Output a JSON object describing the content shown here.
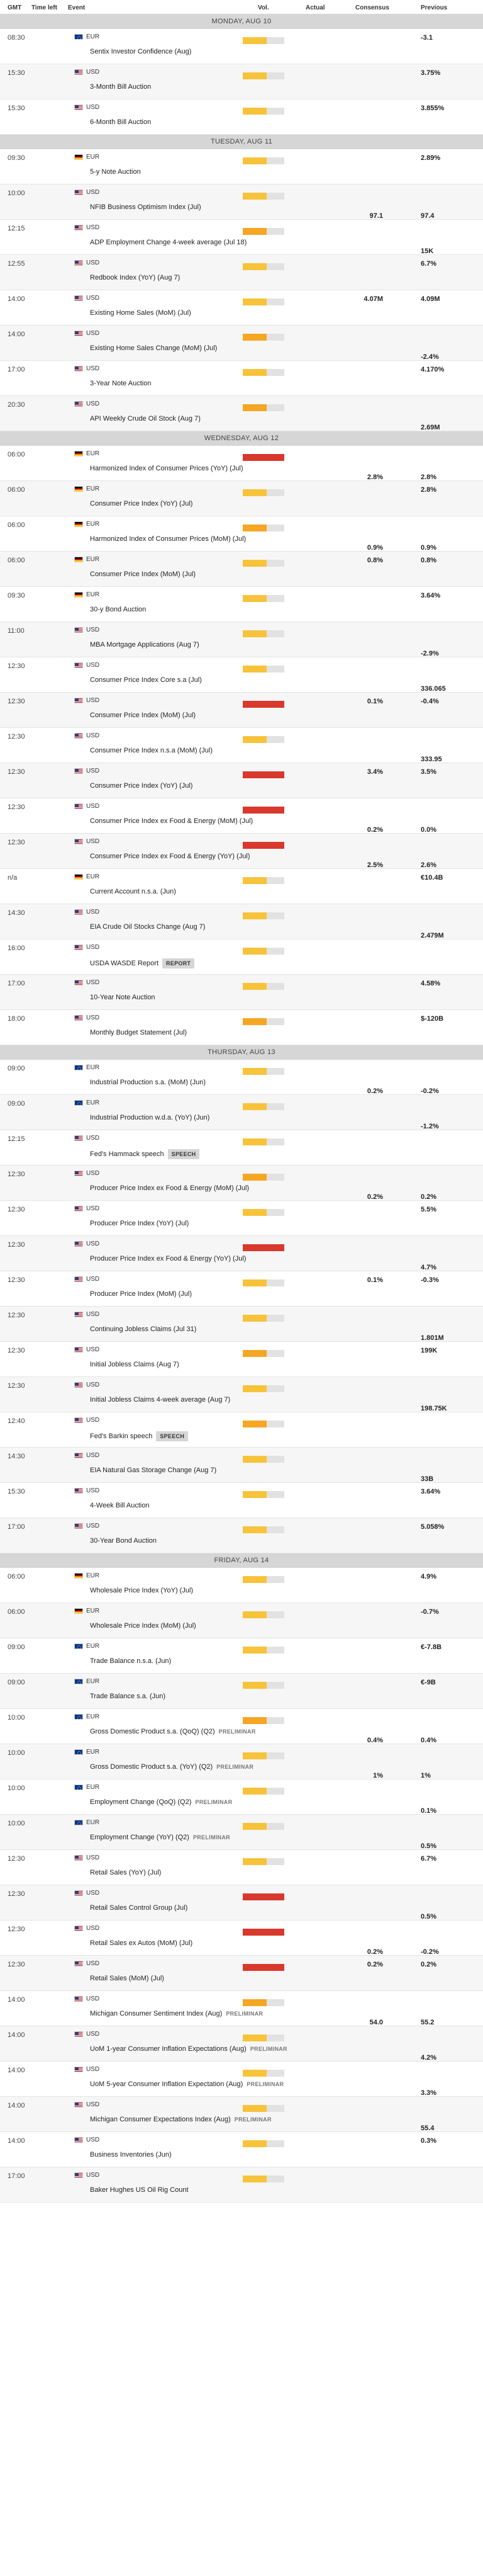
{
  "header": {
    "time": "GMT",
    "time_left": "Time left",
    "event": "Event",
    "vol": "Vol.",
    "actual": "Actual",
    "consensus": "Consensus",
    "previous": "Previous"
  },
  "colors": {
    "vol_low": "#f7c33a",
    "vol_medium": "#f5a623",
    "vol_high": "#d9382c",
    "vol_bg": "#e2e2e2",
    "day_bg": "#d6d6d6"
  },
  "days": [
    {
      "label": "MONDAY, AUG 10",
      "events": [
        {
          "time": "08:30",
          "flag": "eu",
          "currency": "EUR",
          "name": "Sentix Investor Confidence (Aug)",
          "vol": "low",
          "consensus": "",
          "previous": "-3.1",
          "pos": "top"
        },
        {
          "time": "15:30",
          "flag": "us",
          "currency": "USD",
          "name": "3-Month Bill Auction",
          "vol": "low",
          "consensus": "",
          "previous": "3.75%",
          "pos": "top"
        },
        {
          "time": "15:30",
          "flag": "us",
          "currency": "USD",
          "name": "6-Month Bill Auction",
          "vol": "low",
          "consensus": "",
          "previous": "3.855%",
          "pos": "top"
        }
      ]
    },
    {
      "label": "TUESDAY, AUG 11",
      "events": [
        {
          "time": "09:30",
          "flag": "de",
          "currency": "EUR",
          "name": "5-y Note Auction",
          "vol": "low",
          "consensus": "",
          "previous": "2.89%",
          "pos": "top"
        },
        {
          "time": "10:00",
          "flag": "us",
          "currency": "USD",
          "name": "NFIB Business Optimism Index (Jul)",
          "vol": "low",
          "consensus": "97.1",
          "previous": "97.4",
          "pos": "bottom"
        },
        {
          "time": "12:15",
          "flag": "us",
          "currency": "USD",
          "name": "ADP Employment Change 4-week average (Jul 18)",
          "vol": "medium",
          "consensus": "",
          "previous": "15K",
          "pos": "bottom"
        },
        {
          "time": "12:55",
          "flag": "us",
          "currency": "USD",
          "name": "Redbook Index (YoY) (Aug 7)",
          "vol": "low",
          "consensus": "",
          "previous": "6.7%",
          "pos": "top"
        },
        {
          "time": "14:00",
          "flag": "us",
          "currency": "USD",
          "name": "Existing Home Sales (MoM) (Jul)",
          "vol": "low",
          "consensus": "4.07M",
          "previous": "4.09M",
          "pos": "top"
        },
        {
          "time": "14:00",
          "flag": "us",
          "currency": "USD",
          "name": "Existing Home Sales Change (MoM) (Jul)",
          "vol": "medium",
          "consensus": "",
          "previous": "-2.4%",
          "pos": "bottom"
        },
        {
          "time": "17:00",
          "flag": "us",
          "currency": "USD",
          "name": "3-Year Note Auction",
          "vol": "low",
          "consensus": "",
          "previous": "4.170%",
          "pos": "top"
        },
        {
          "time": "20:30",
          "flag": "us",
          "currency": "USD",
          "name": "API Weekly Crude Oil Stock (Aug 7)",
          "vol": "medium",
          "consensus": "",
          "previous": "2.69M",
          "pos": "bottom"
        }
      ]
    },
    {
      "label": "WEDNESDAY, AUG 12",
      "events": [
        {
          "time": "06:00",
          "flag": "de",
          "currency": "EUR",
          "name": "Harmonized Index of Consumer Prices (YoY) (Jul)",
          "vol": "high",
          "consensus": "2.8%",
          "previous": "2.8%",
          "pos": "bottom"
        },
        {
          "time": "06:00",
          "flag": "de",
          "currency": "EUR",
          "name": "Consumer Price Index (YoY) (Jul)",
          "vol": "low",
          "consensus": "",
          "previous": "2.8%",
          "pos": "top"
        },
        {
          "time": "06:00",
          "flag": "de",
          "currency": "EUR",
          "name": "Harmonized Index of Consumer Prices (MoM) (Jul)",
          "vol": "medium",
          "consensus": "0.9%",
          "previous": "0.9%",
          "pos": "bottom"
        },
        {
          "time": "06:00",
          "flag": "de",
          "currency": "EUR",
          "name": "Consumer Price Index (MoM) (Jul)",
          "vol": "low",
          "consensus": "0.8%",
          "previous": "0.8%",
          "pos": "top"
        },
        {
          "time": "09:30",
          "flag": "de",
          "currency": "EUR",
          "name": "30-y Bond Auction",
          "vol": "low",
          "consensus": "",
          "previous": "3.64%",
          "pos": "top"
        },
        {
          "time": "11:00",
          "flag": "us",
          "currency": "USD",
          "name": "MBA Mortgage Applications (Aug 7)",
          "vol": "low",
          "consensus": "",
          "previous": "-2.9%",
          "pos": "bottom"
        },
        {
          "time": "12:30",
          "flag": "us",
          "currency": "USD",
          "name": "Consumer Price Index Core s.a (Jul)",
          "vol": "low",
          "consensus": "",
          "previous": "336.065",
          "pos": "bottom"
        },
        {
          "time": "12:30",
          "flag": "us",
          "currency": "USD",
          "name": "Consumer Price Index (MoM) (Jul)",
          "vol": "high",
          "consensus": "0.1%",
          "previous": "-0.4%",
          "pos": "top"
        },
        {
          "time": "12:30",
          "flag": "us",
          "currency": "USD",
          "name": "Consumer Price Index n.s.a (MoM) (Jul)",
          "vol": "low",
          "consensus": "",
          "previous": "333.95",
          "pos": "bottom"
        },
        {
          "time": "12:30",
          "flag": "us",
          "currency": "USD",
          "name": "Consumer Price Index (YoY) (Jul)",
          "vol": "high",
          "consensus": "3.4%",
          "previous": "3.5%",
          "pos": "top"
        },
        {
          "time": "12:30",
          "flag": "us",
          "currency": "USD",
          "name": "Consumer Price Index ex Food & Energy (MoM) (Jul)",
          "vol": "high",
          "consensus": "0.2%",
          "previous": "0.0%",
          "pos": "bottom"
        },
        {
          "time": "12:30",
          "flag": "us",
          "currency": "USD",
          "name": "Consumer Price Index ex Food & Energy (YoY) (Jul)",
          "vol": "high",
          "consensus": "2.5%",
          "previous": "2.6%",
          "pos": "bottom"
        },
        {
          "time": "n/a",
          "flag": "de",
          "currency": "EUR",
          "name": "Current Account n.s.a. (Jun)",
          "vol": "low",
          "consensus": "",
          "previous": "€10.4B",
          "pos": "top"
        },
        {
          "time": "14:30",
          "flag": "us",
          "currency": "USD",
          "name": "EIA Crude Oil Stocks Change (Aug 7)",
          "vol": "low",
          "consensus": "",
          "previous": "2.479M",
          "pos": "bottom"
        },
        {
          "time": "16:00",
          "flag": "us",
          "currency": "USD",
          "name": "USDA WASDE Report",
          "tag": "REPORT",
          "tagstyle": "box",
          "vol": "low",
          "consensus": "",
          "previous": "",
          "pos": "top"
        },
        {
          "time": "17:00",
          "flag": "us",
          "currency": "USD",
          "name": "10-Year Note Auction",
          "vol": "low",
          "consensus": "",
          "previous": "4.58%",
          "pos": "top"
        },
        {
          "time": "18:00",
          "flag": "us",
          "currency": "USD",
          "name": "Monthly Budget Statement (Jul)",
          "vol": "medium",
          "consensus": "",
          "previous": "$-120B",
          "pos": "top"
        }
      ]
    },
    {
      "label": "THURSDAY, AUG 13",
      "events": [
        {
          "time": "09:00",
          "flag": "eu",
          "currency": "EUR",
          "name": "Industrial Production s.a. (MoM) (Jun)",
          "vol": "low",
          "consensus": "0.2%",
          "previous": "-0.2%",
          "pos": "bottom"
        },
        {
          "time": "09:00",
          "flag": "eu",
          "currency": "EUR",
          "name": "Industrial Production w.d.a. (YoY) (Jun)",
          "vol": "low",
          "consensus": "",
          "previous": "-1.2%",
          "pos": "bottom"
        },
        {
          "time": "12:15",
          "flag": "us",
          "currency": "USD",
          "name": "Fed's Hammack speech",
          "tag": "SPEECH",
          "tagstyle": "box",
          "vol": "low",
          "consensus": "",
          "previous": "",
          "pos": "top"
        },
        {
          "time": "12:30",
          "flag": "us",
          "currency": "USD",
          "name": "Producer Price Index ex Food & Energy (MoM) (Jul)",
          "vol": "medium",
          "consensus": "0.2%",
          "previous": "0.2%",
          "pos": "bottom"
        },
        {
          "time": "12:30",
          "flag": "us",
          "currency": "USD",
          "name": "Producer Price Index (YoY) (Jul)",
          "vol": "low",
          "consensus": "",
          "previous": "5.5%",
          "pos": "top"
        },
        {
          "time": "12:30",
          "flag": "us",
          "currency": "USD",
          "name": "Producer Price Index ex Food & Energy (YoY) (Jul)",
          "vol": "high",
          "consensus": "",
          "previous": "4.7%",
          "pos": "bottom"
        },
        {
          "time": "12:30",
          "flag": "us",
          "currency": "USD",
          "name": "Producer Price Index (MoM) (Jul)",
          "vol": "low",
          "consensus": "0.1%",
          "previous": "-0.3%",
          "pos": "top"
        },
        {
          "time": "12:30",
          "flag": "us",
          "currency": "USD",
          "name": "Continuing Jobless Claims (Jul 31)",
          "vol": "low",
          "consensus": "",
          "previous": "1.801M",
          "pos": "bottom"
        },
        {
          "time": "12:30",
          "flag": "us",
          "currency": "USD",
          "name": "Initial Jobless Claims (Aug 7)",
          "vol": "medium",
          "consensus": "",
          "previous": "199K",
          "pos": "top"
        },
        {
          "time": "12:30",
          "flag": "us",
          "currency": "USD",
          "name": "Initial Jobless Claims 4-week average (Aug 7)",
          "vol": "low",
          "consensus": "",
          "previous": "198.75K",
          "pos": "bottom"
        },
        {
          "time": "12:40",
          "flag": "us",
          "currency": "USD",
          "name": "Fed's Barkin speech",
          "tag": "SPEECH",
          "tagstyle": "box",
          "vol": "medium",
          "consensus": "",
          "previous": "",
          "pos": "top"
        },
        {
          "time": "14:30",
          "flag": "us",
          "currency": "USD",
          "name": "EIA Natural Gas Storage Change (Aug 7)",
          "vol": "low",
          "consensus": "",
          "previous": "33B",
          "pos": "bottom"
        },
        {
          "time": "15:30",
          "flag": "us",
          "currency": "USD",
          "name": "4-Week Bill Auction",
          "vol": "low",
          "consensus": "",
          "previous": "3.64%",
          "pos": "top"
        },
        {
          "time": "17:00",
          "flag": "us",
          "currency": "USD",
          "name": "30-Year Bond Auction",
          "vol": "low",
          "consensus": "",
          "previous": "5.058%",
          "pos": "top"
        }
      ]
    },
    {
      "label": "FRIDAY, AUG 14",
      "events": [
        {
          "time": "06:00",
          "flag": "de",
          "currency": "EUR",
          "name": "Wholesale Price Index (YoY) (Jul)",
          "vol": "low",
          "consensus": "",
          "previous": "4.9%",
          "pos": "top"
        },
        {
          "time": "06:00",
          "flag": "de",
          "currency": "EUR",
          "name": "Wholesale Price Index (MoM) (Jul)",
          "vol": "low",
          "consensus": "",
          "previous": "-0.7%",
          "pos": "top"
        },
        {
          "time": "09:00",
          "flag": "eu",
          "currency": "EUR",
          "name": "Trade Balance n.s.a. (Jun)",
          "vol": "low",
          "consensus": "",
          "previous": "€-7.8B",
          "pos": "top"
        },
        {
          "time": "09:00",
          "flag": "eu",
          "currency": "EUR",
          "name": "Trade Balance s.a. (Jun)",
          "vol": "low",
          "consensus": "",
          "previous": "€-9B",
          "pos": "top"
        },
        {
          "time": "10:00",
          "flag": "eu",
          "currency": "EUR",
          "name": "Gross Domestic Product s.a. (QoQ) (Q2)",
          "tag": "PRELIMINAR",
          "tagstyle": "plain",
          "vol": "medium",
          "consensus": "0.4%",
          "previous": "0.4%",
          "pos": "bottom"
        },
        {
          "time": "10:00",
          "flag": "eu",
          "currency": "EUR",
          "name": "Gross Domestic Product s.a. (YoY) (Q2)",
          "tag": "PRELIMINAR",
          "tagstyle": "plain",
          "vol": "low",
          "consensus": "1%",
          "previous": "1%",
          "pos": "bottom"
        },
        {
          "time": "10:00",
          "flag": "eu",
          "currency": "EUR",
          "name": "Employment Change (QoQ) (Q2)",
          "tag": "PRELIMINAR",
          "tagstyle": "plain",
          "vol": "low",
          "consensus": "",
          "previous": "0.1%",
          "pos": "bottom"
        },
        {
          "time": "10:00",
          "flag": "eu",
          "currency": "EUR",
          "name": "Employment Change (YoY) (Q2)",
          "tag": "PRELIMINAR",
          "tagstyle": "plain",
          "vol": "low",
          "consensus": "",
          "previous": "0.5%",
          "pos": "bottom"
        },
        {
          "time": "12:30",
          "flag": "us",
          "currency": "USD",
          "name": "Retail Sales (YoY) (Jul)",
          "vol": "low",
          "consensus": "",
          "previous": "6.7%",
          "pos": "top"
        },
        {
          "time": "12:30",
          "flag": "us",
          "currency": "USD",
          "name": "Retail Sales Control Group (Jul)",
          "vol": "high",
          "consensus": "",
          "previous": "0.5%",
          "pos": "bottom"
        },
        {
          "time": "12:30",
          "flag": "us",
          "currency": "USD",
          "name": "Retail Sales ex Autos (MoM) (Jul)",
          "vol": "high",
          "consensus": "0.2%",
          "previous": "-0.2%",
          "pos": "bottom"
        },
        {
          "time": "12:30",
          "flag": "us",
          "currency": "USD",
          "name": "Retail Sales (MoM) (Jul)",
          "vol": "high",
          "consensus": "0.2%",
          "previous": "0.2%",
          "pos": "top"
        },
        {
          "time": "14:00",
          "flag": "us",
          "currency": "USD",
          "name": "Michigan Consumer Sentiment Index (Aug)",
          "tag": "PRELIMINAR",
          "tagstyle": "plain",
          "vol": "medium",
          "consensus": "54.0",
          "previous": "55.2",
          "pos": "bottom"
        },
        {
          "time": "14:00",
          "flag": "us",
          "currency": "USD",
          "name": "UoM 1-year Consumer Inflation Expectations (Aug)",
          "tag": "PRELIMINAR",
          "tagstyle": "plain",
          "vol": "low",
          "consensus": "",
          "previous": "4.2%",
          "pos": "bottom"
        },
        {
          "time": "14:00",
          "flag": "us",
          "currency": "USD",
          "name": "UoM 5-year Consumer Inflation Expectation (Aug)",
          "tag": "PRELIMINAR",
          "tagstyle": "plain",
          "vol": "low",
          "consensus": "",
          "previous": "3.3%",
          "pos": "bottom"
        },
        {
          "time": "14:00",
          "flag": "us",
          "currency": "USD",
          "name": "Michigan Consumer Expectations Index (Aug)",
          "tag": "PRELIMINAR",
          "tagstyle": "plain",
          "vol": "low",
          "consensus": "",
          "previous": "55.4",
          "pos": "bottom"
        },
        {
          "time": "14:00",
          "flag": "us",
          "currency": "USD",
          "name": "Business Inventories (Jun)",
          "vol": "low",
          "consensus": "",
          "previous": "0.3%",
          "pos": "top"
        },
        {
          "time": "17:00",
          "flag": "us",
          "currency": "USD",
          "name": "Baker Hughes US Oil Rig Count",
          "vol": "low",
          "consensus": "",
          "previous": "",
          "pos": "bottom"
        }
      ]
    }
  ]
}
